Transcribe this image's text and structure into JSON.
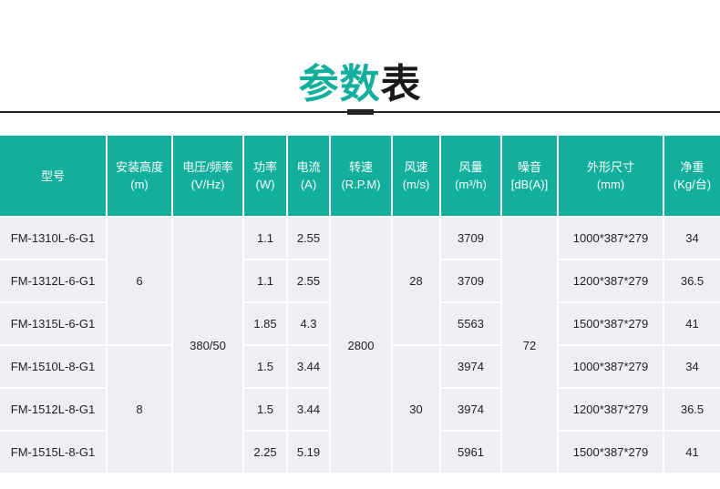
{
  "title": {
    "part1": "参数",
    "part2": "表"
  },
  "accent": "#12af9c",
  "headers": [
    {
      "l1": "型号",
      "l2": ""
    },
    {
      "l1": "安装高度",
      "l2": "(m)"
    },
    {
      "l1": "电压/频率",
      "l2": "(V/Hz)"
    },
    {
      "l1": "功率",
      "l2": "(W)"
    },
    {
      "l1": "电流",
      "l2": "(A)"
    },
    {
      "l1": "转速",
      "l2": "(R.P.M)"
    },
    {
      "l1": "风速",
      "l2": "(m/s)"
    },
    {
      "l1": "风量",
      "l2": "(m³/h)"
    },
    {
      "l1": "噪音",
      "l2": "[dB(A)]"
    },
    {
      "l1": "外形尺寸",
      "l2": "(mm)"
    },
    {
      "l1": "净重",
      "l2": "(Kg/台)"
    }
  ],
  "merged": {
    "height_a": "6",
    "height_b": "8",
    "voltage": "380/50",
    "speed": "2800",
    "wind_a": "28",
    "wind_b": "30",
    "noise": "72"
  },
  "rows": [
    {
      "model": "FM-1310L-6-G1",
      "power": "1.1",
      "current": "2.55",
      "airflow": "3709",
      "size": "1000*387*279",
      "weight": "34"
    },
    {
      "model": "FM-1312L-6-G1",
      "power": "1.1",
      "current": "2.55",
      "airflow": "3709",
      "size": "1200*387*279",
      "weight": "36.5"
    },
    {
      "model": "FM-1315L-6-G1",
      "power": "1.85",
      "current": "4.3",
      "airflow": "5563",
      "size": "1500*387*279",
      "weight": "41"
    },
    {
      "model": "FM-1510L-8-G1",
      "power": "1.5",
      "current": "3.44",
      "airflow": "3974",
      "size": "1000*387*279",
      "weight": "34"
    },
    {
      "model": "FM-1512L-8-G1",
      "power": "1.5",
      "current": "3.44",
      "airflow": "3974",
      "size": "1200*387*279",
      "weight": "36.5"
    },
    {
      "model": "FM-1515L-8-G1",
      "power": "2.25",
      "current": "5.19",
      "airflow": "5961",
      "size": "1500*387*279",
      "weight": "41"
    }
  ]
}
